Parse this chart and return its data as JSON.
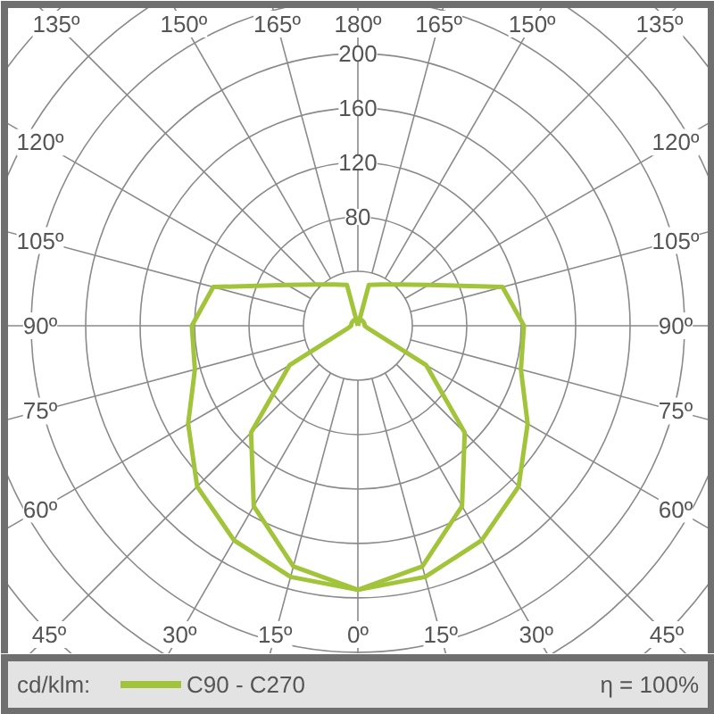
{
  "chart_data": {
    "type": "radar",
    "categories": [
      "180º",
      "165º",
      "150º",
      "135º",
      "120º",
      "105º",
      "90º",
      "75º",
      "60º",
      "45º",
      "30º",
      "15º",
      "0º",
      "15º",
      "30º",
      "45º",
      "60º",
      "75º",
      "90º",
      "105º",
      "120º",
      "135º",
      "150º",
      "165º"
    ],
    "series": [
      {
        "name": "C90 - C270",
        "color": "#a2c43a",
        "values": [
          0,
          31,
          35,
          43,
          60,
          110,
          122,
          124,
          144,
          167,
          182,
          191,
          194,
          191,
          182,
          167,
          144,
          124,
          122,
          110,
          60,
          43,
          35,
          31
        ]
      },
      {
        "color": "#a2c43a",
        "values": [
          5,
          5,
          5,
          5,
          5,
          5,
          5,
          8,
          58,
          111,
          153,
          183,
          194,
          183,
          153,
          111,
          58,
          8,
          5,
          5,
          5,
          5,
          5,
          5
        ]
      }
    ],
    "ylim": [
      0,
      320
    ],
    "yticks": [
      80,
      120,
      160,
      200
    ],
    "grid": true,
    "legend": "bottom",
    "line_style": "solid",
    "annotations": [
      "cd/klm:",
      "η = 100%"
    ]
  }
}
